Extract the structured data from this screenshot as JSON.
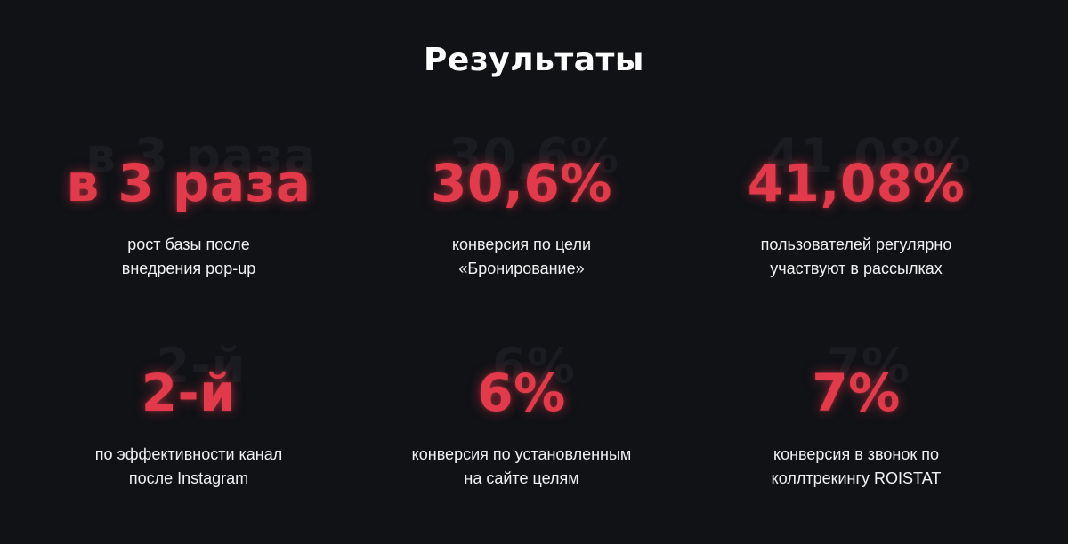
{
  "section_title": "Результаты",
  "stats": [
    {
      "value": "в 3 раза",
      "description": "рост базы после\nвнедрения pop-up"
    },
    {
      "value": "30,6%",
      "description": "конверсия по цели\n«Бронирование»"
    },
    {
      "value": "41,08%",
      "description": "пользователей регулярно\nучаствуют в рассылках"
    },
    {
      "value": "2-й",
      "description": "по эффективности канал\nпосле Instagram"
    },
    {
      "value": "6%",
      "description": "конверсия по установленным\nна сайте целям"
    },
    {
      "value": "7%",
      "description": "конверсия в звонок по\nколлтрекингу ROISTAT"
    }
  ],
  "colors": {
    "background": "#101216",
    "accent": "#e23a4a",
    "ghost": "#1a1c21",
    "text": "#ffffff"
  }
}
